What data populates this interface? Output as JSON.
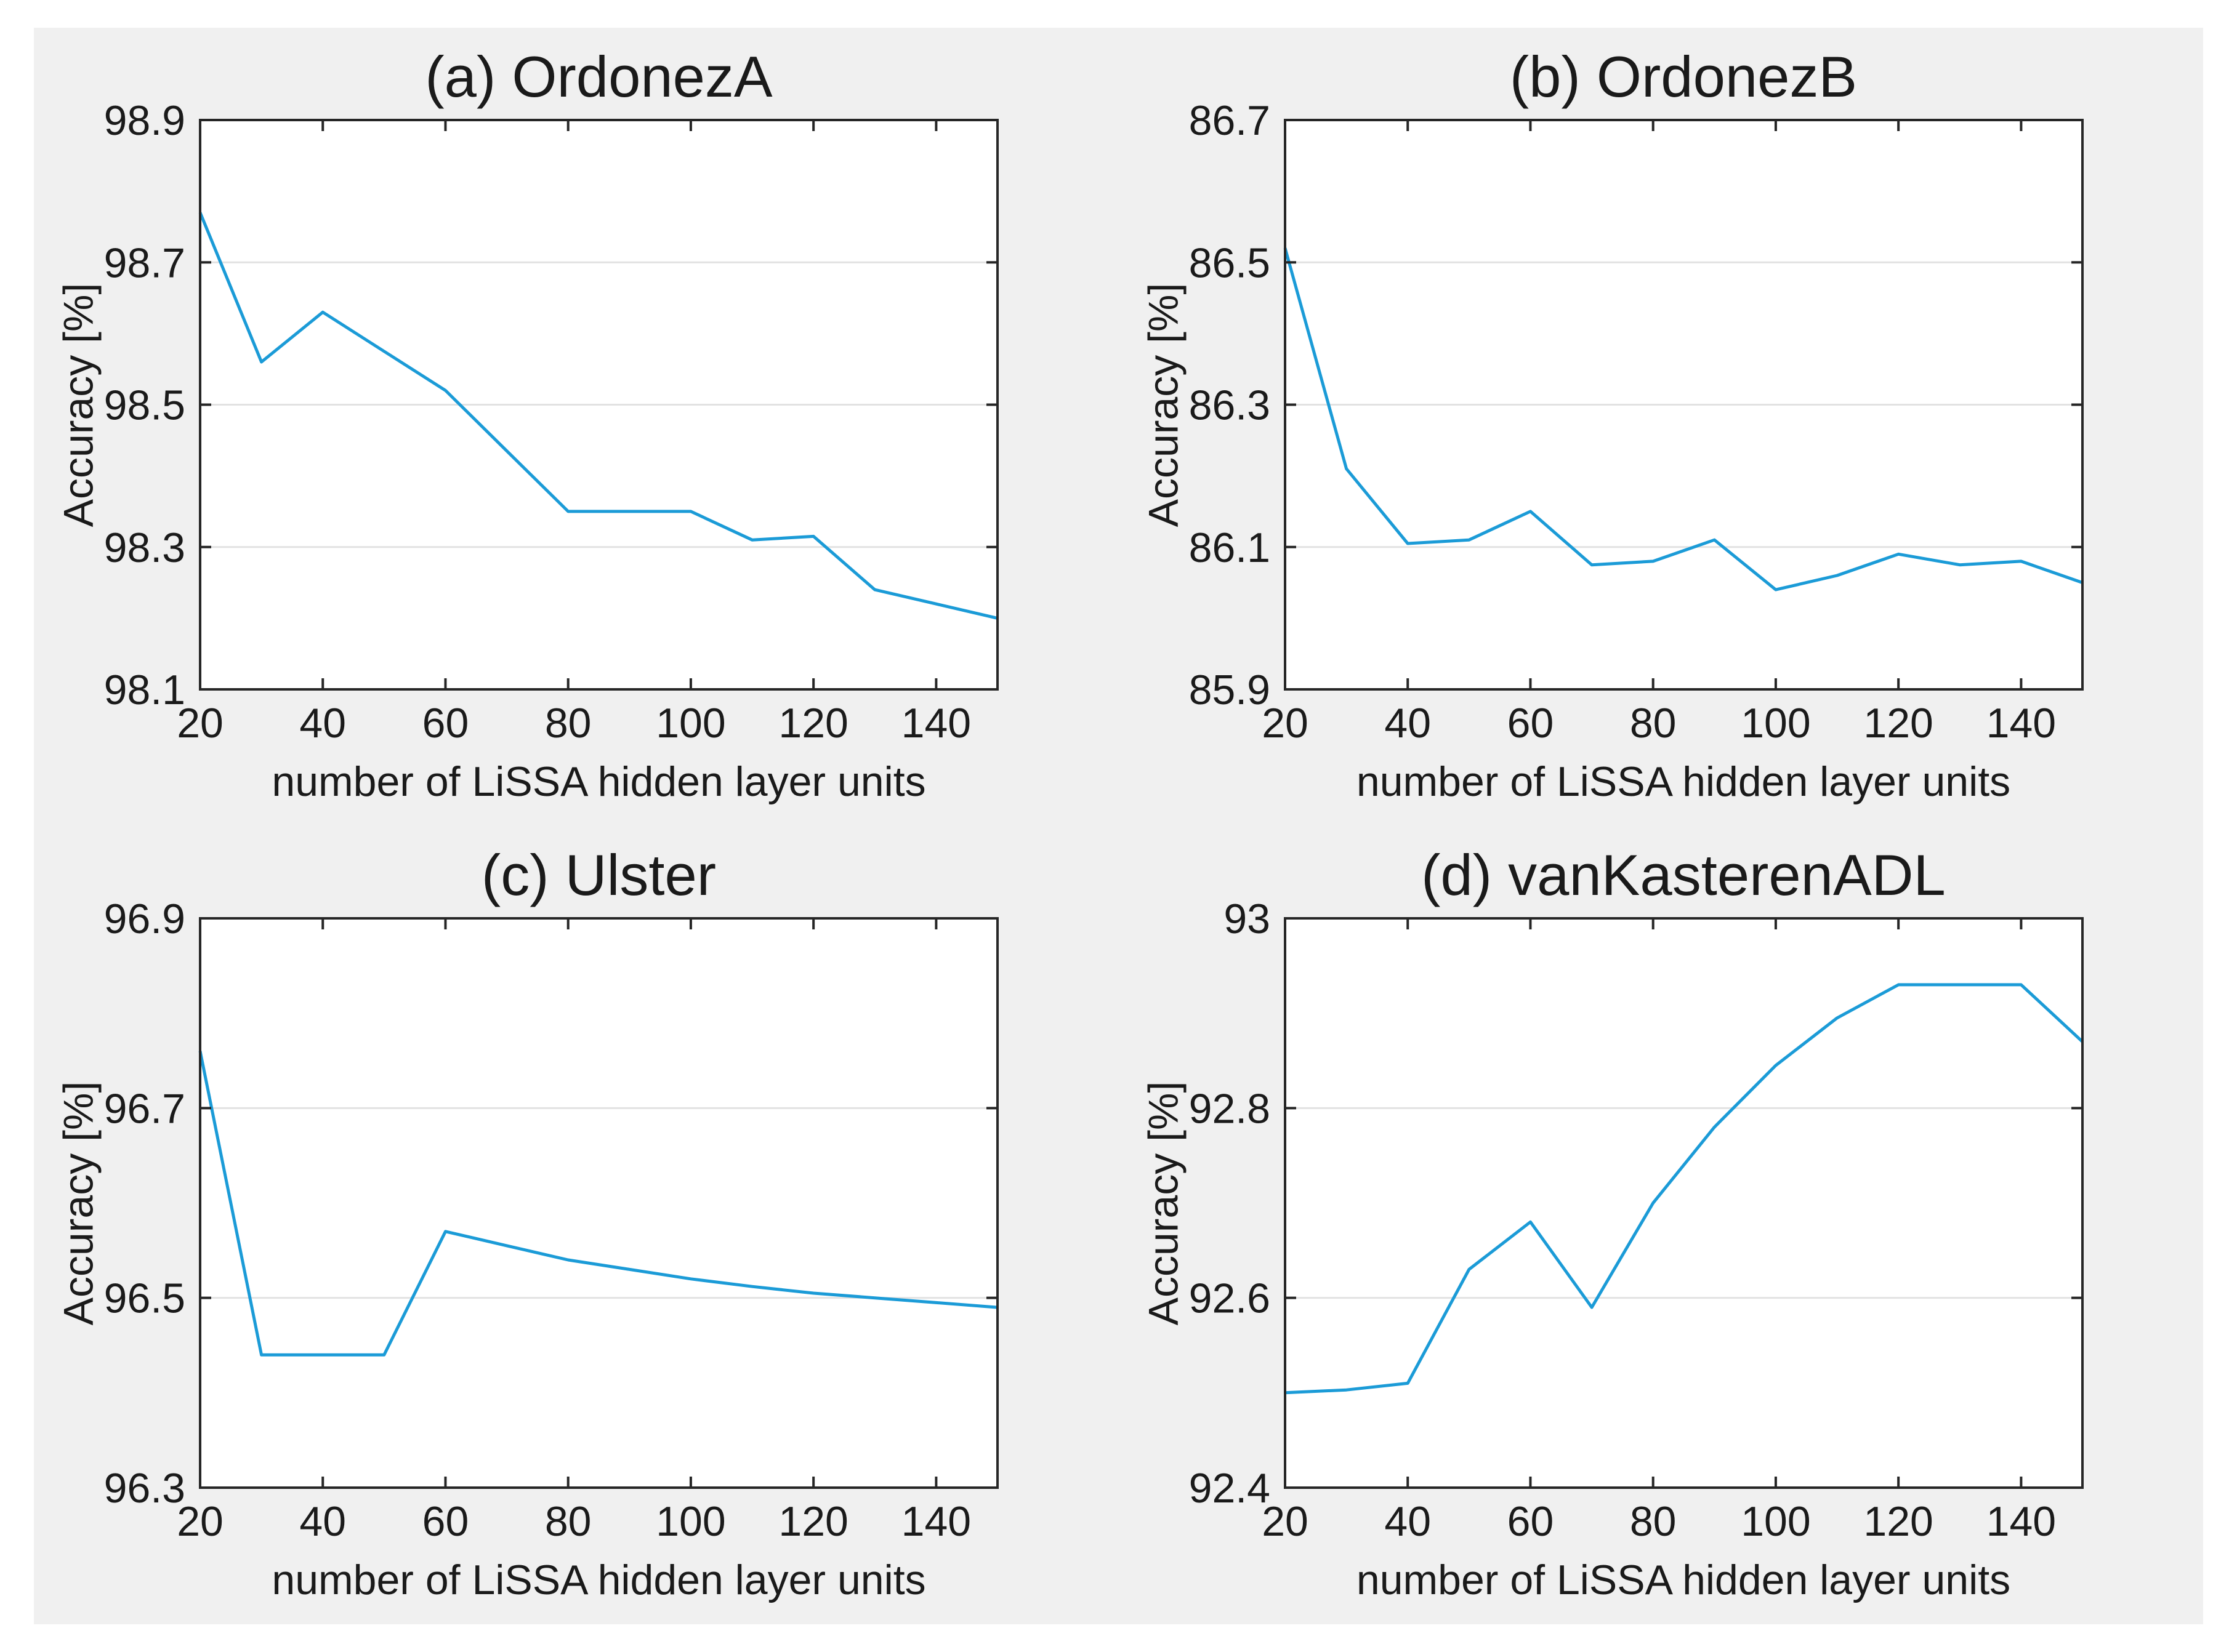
{
  "figure": {
    "outer_background": "#ffffff",
    "background": "#f0f0f0",
    "plot_background": "#ffffff",
    "line_color": "#1b9bd7",
    "grid_color": "#e2e2e2",
    "frame_color": "#262626",
    "text_color": "#1a1a1a"
  },
  "chart_data": [
    {
      "type": "line",
      "title": "(a) OrdonezA",
      "xlabel": "number of LiSSA hidden layer units",
      "ylabel": "Accuracy [%]",
      "x": [
        20,
        30,
        40,
        50,
        60,
        70,
        80,
        90,
        100,
        110,
        120,
        130,
        140,
        150
      ],
      "y": [
        98.77,
        98.56,
        98.63,
        98.575,
        98.52,
        98.435,
        98.35,
        98.35,
        98.35,
        98.31,
        98.315,
        98.24,
        98.22,
        98.2
      ],
      "xlim": [
        20,
        150
      ],
      "ylim": [
        98.1,
        98.9
      ],
      "xticks": [
        20,
        40,
        60,
        80,
        100,
        120,
        140
      ],
      "xtick_labels": [
        "20",
        "40",
        "60",
        "80",
        "100",
        "120",
        "140"
      ],
      "yticks": [
        98.1,
        98.3,
        98.5,
        98.7,
        98.9
      ],
      "ytick_labels": [
        "98.1",
        "98.3",
        "98.5",
        "98.7",
        "98.9"
      ],
      "grid": "horizontal-only",
      "legend": "none"
    },
    {
      "type": "line",
      "title": "(b) OrdonezB",
      "xlabel": "number of LiSSA hidden layer units",
      "ylabel": "Accuracy [%]",
      "x": [
        20,
        30,
        40,
        50,
        60,
        70,
        80,
        90,
        100,
        110,
        120,
        130,
        140,
        150
      ],
      "y": [
        86.52,
        86.21,
        86.105,
        86.11,
        86.15,
        86.075,
        86.08,
        86.11,
        86.04,
        86.06,
        86.09,
        86.075,
        86.08,
        86.05
      ],
      "xlim": [
        20,
        150
      ],
      "ylim": [
        85.9,
        86.7
      ],
      "xticks": [
        20,
        40,
        60,
        80,
        100,
        120,
        140
      ],
      "xtick_labels": [
        "20",
        "40",
        "60",
        "80",
        "100",
        "120",
        "140"
      ],
      "yticks": [
        85.9,
        86.1,
        86.3,
        86.5,
        86.7
      ],
      "ytick_labels": [
        "85.9",
        "86.1",
        "86.3",
        "86.5",
        "86.7"
      ],
      "grid": "horizontal-only",
      "legend": "none"
    },
    {
      "type": "line",
      "title": "(c) Ulster",
      "xlabel": "number of LiSSA hidden layer units",
      "ylabel": "Accuracy [%]",
      "x": [
        20,
        30,
        40,
        50,
        60,
        70,
        80,
        90,
        100,
        110,
        120,
        130,
        140,
        150
      ],
      "y": [
        96.76,
        96.44,
        96.44,
        96.44,
        96.57,
        96.555,
        96.54,
        96.53,
        96.52,
        96.512,
        96.505,
        96.5,
        96.495,
        96.49
      ],
      "xlim": [
        20,
        150
      ],
      "ylim": [
        96.3,
        96.9
      ],
      "xticks": [
        20,
        40,
        60,
        80,
        100,
        120,
        140
      ],
      "xtick_labels": [
        "20",
        "40",
        "60",
        "80",
        "100",
        "120",
        "140"
      ],
      "yticks": [
        96.3,
        96.5,
        96.7,
        96.9
      ],
      "ytick_labels": [
        "96.3",
        "96.5",
        "96.7",
        "96.9"
      ],
      "grid": "horizontal-only",
      "legend": "none"
    },
    {
      "type": "line",
      "title": "(d) vanKasterenADL",
      "xlabel": "number of LiSSA hidden layer units",
      "ylabel": "Accuracy [%]",
      "x": [
        20,
        30,
        40,
        50,
        60,
        70,
        80,
        90,
        100,
        110,
        120,
        130,
        140,
        150
      ],
      "y": [
        92.5,
        92.503,
        92.51,
        92.63,
        92.68,
        92.59,
        92.7,
        92.78,
        92.845,
        92.895,
        92.93,
        92.93,
        92.93,
        92.87
      ],
      "xlim": [
        20,
        150
      ],
      "ylim": [
        92.4,
        93.0
      ],
      "xticks": [
        20,
        40,
        60,
        80,
        100,
        120,
        140
      ],
      "xtick_labels": [
        "20",
        "40",
        "60",
        "80",
        "100",
        "120",
        "140"
      ],
      "yticks": [
        92.4,
        92.6,
        92.8,
        93.0
      ],
      "ytick_labels": [
        "92.4",
        "92.6",
        "92.8",
        "93"
      ],
      "grid": "horizontal-only",
      "legend": "none"
    }
  ]
}
